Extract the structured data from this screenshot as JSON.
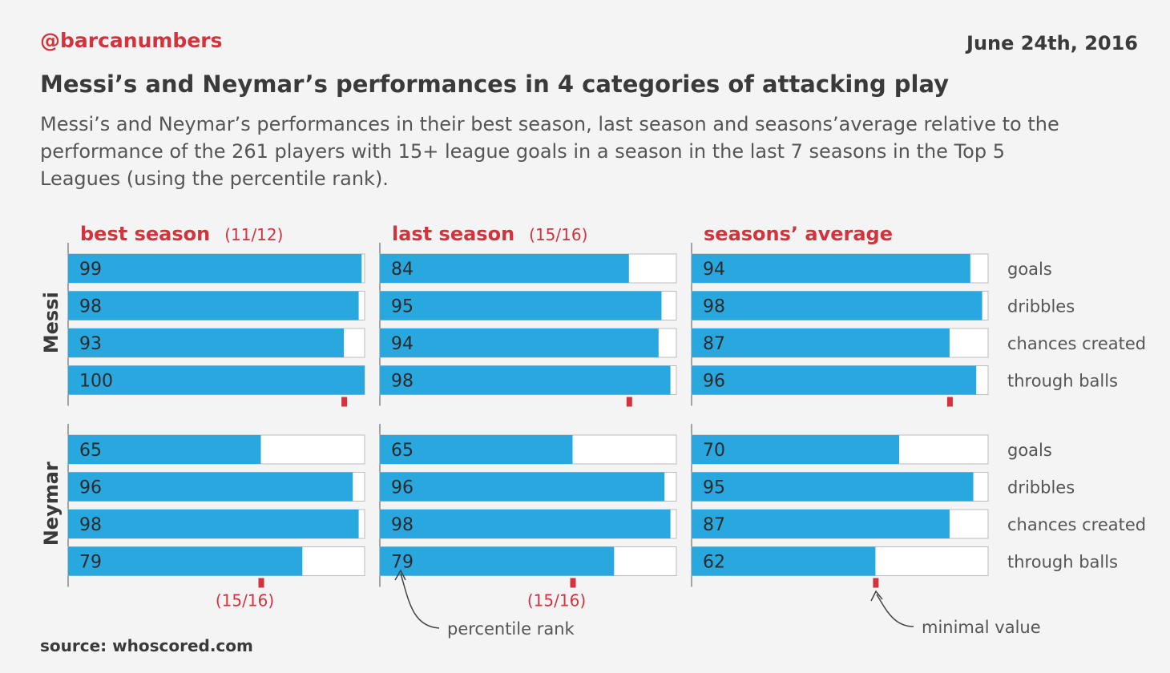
{
  "header": {
    "handle": "@barcanumbers",
    "date": "June 24th, 2016",
    "title": "Messi’s and Neymar’s performances in 4 categories of attacking play",
    "subtitle": "Messi’s and Neymar’s performances in their best season, last season and seasons’average relative to the performance of the 261 players with 15+ league goals in a season in the last 7 seasons in the Top 5 Leagues (using the percentile rank)."
  },
  "footer": {
    "source": "source: whoscored.com"
  },
  "annotations": {
    "percentile_rank": "percentile rank",
    "minimal_value": "minimal value"
  },
  "colors": {
    "bar": "#29a8e0",
    "accent": "#d2333c",
    "track": "#ffffff",
    "track_border": "#bbbbbb"
  },
  "chart_data": {
    "type": "bar",
    "orientation": "horizontal",
    "xlim": [
      0,
      100
    ],
    "categories": [
      "goals",
      "dribbles",
      "chances created",
      "through balls"
    ],
    "panels": [
      {
        "title": "best season",
        "season": "(11/12)"
      },
      {
        "title": "last season",
        "season": "(15/16)"
      },
      {
        "title": "seasons’ average",
        "season": ""
      }
    ],
    "players": [
      {
        "name": "Messi",
        "values": [
          [
            99,
            98,
            93,
            100
          ],
          [
            84,
            95,
            94,
            98
          ],
          [
            94,
            98,
            87,
            96
          ]
        ],
        "minimal_values": [
          93,
          84,
          87
        ],
        "minimal_labels": [
          "",
          "",
          ""
        ]
      },
      {
        "name": "Neymar",
        "values": [
          [
            65,
            96,
            98,
            79
          ],
          [
            65,
            96,
            98,
            79
          ],
          [
            70,
            95,
            87,
            62
          ]
        ],
        "minimal_values": [
          65,
          65,
          62
        ],
        "minimal_labels": [
          "(15/16)",
          "(15/16)",
          ""
        ]
      }
    ]
  }
}
